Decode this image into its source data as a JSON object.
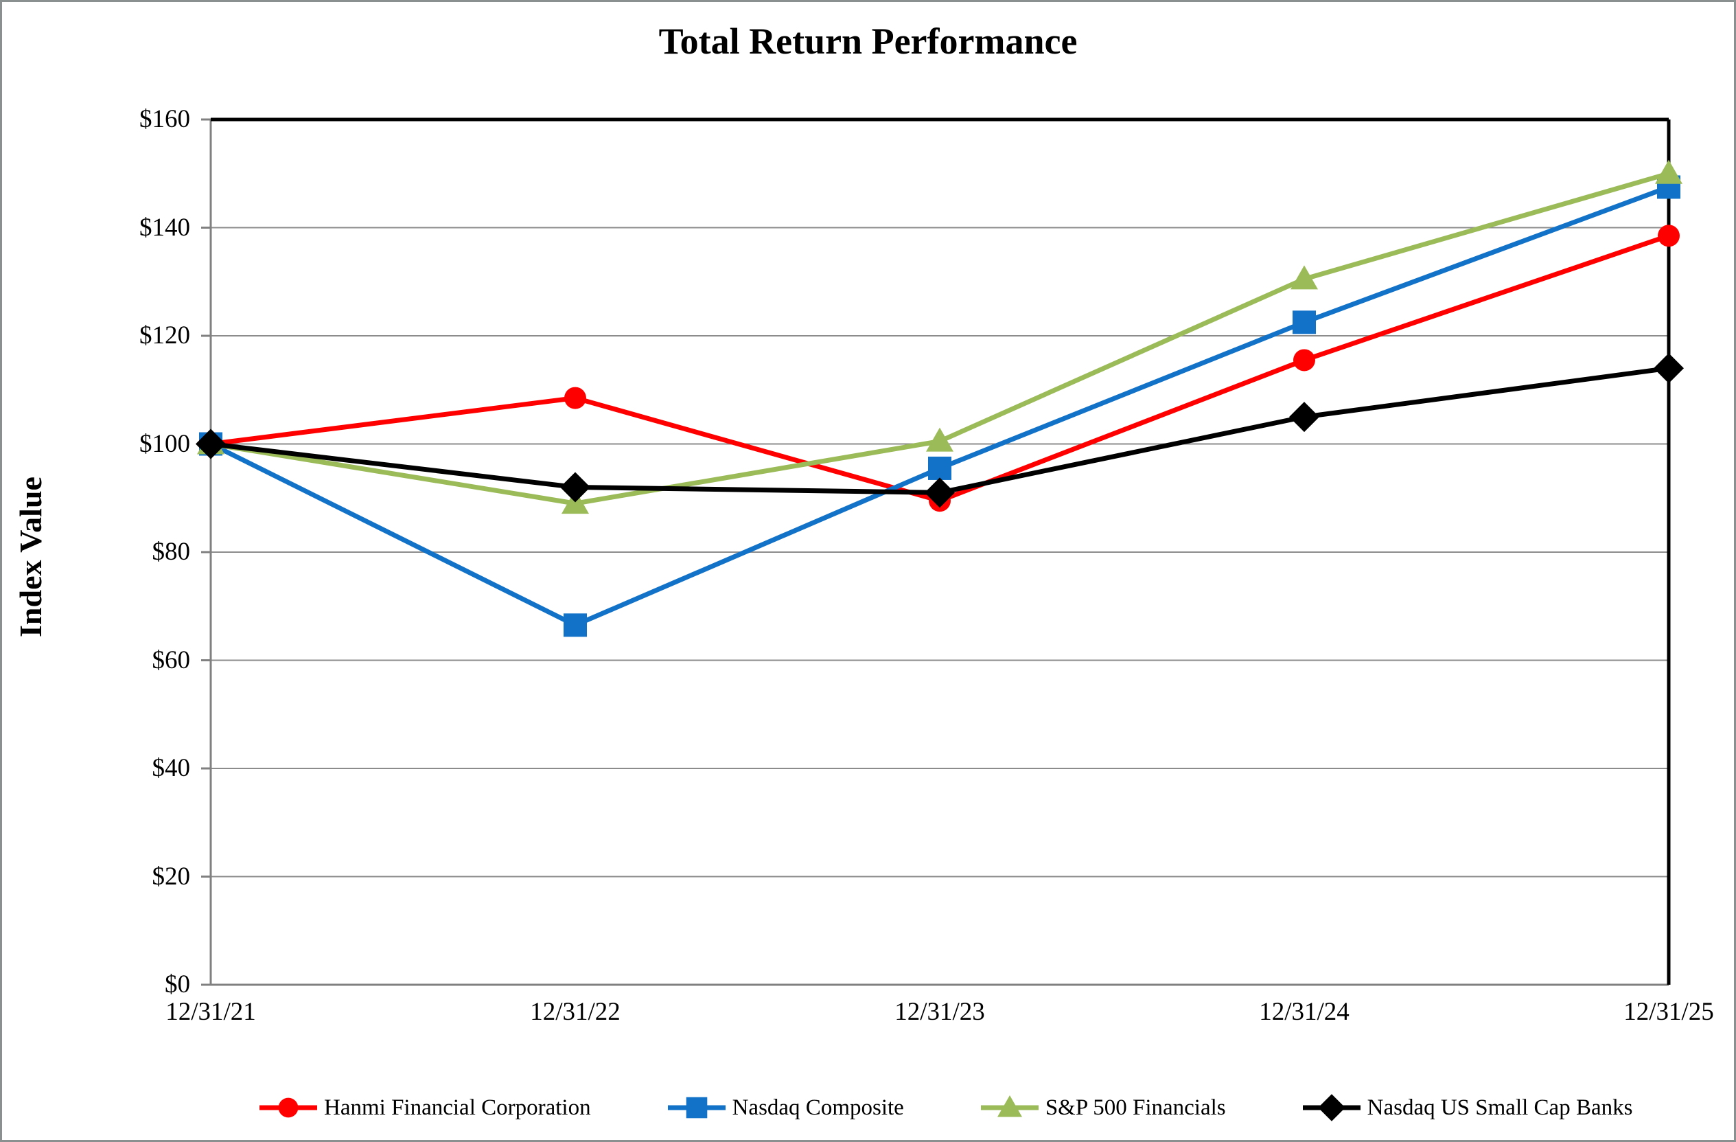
{
  "chart_data": {
    "type": "line",
    "title": "Total Return Performance",
    "xlabel": "",
    "ylabel": "Index Value",
    "categories": [
      "12/31/21",
      "12/31/22",
      "12/31/23",
      "12/31/24",
      "12/31/25"
    ],
    "y_axis": {
      "min": 0,
      "max": 160,
      "tick_step": 20,
      "tick_labels": [
        "$0",
        "$20",
        "$40",
        "$60",
        "$80",
        "$100",
        "$120",
        "$140",
        "$160"
      ]
    },
    "grid": "horizontal",
    "legend_position": "bottom",
    "series": [
      {
        "name": "Hanmi Financial Corporation",
        "color": "#FF0000",
        "marker": "circle",
        "values": [
          100,
          108.5,
          89.5,
          115.5,
          138.5
        ]
      },
      {
        "name": "Nasdaq Composite",
        "color": "#1272C8",
        "marker": "square",
        "values": [
          100,
          66.5,
          95.5,
          122.5,
          147.5
        ]
      },
      {
        "name": "S&P 500 Financials",
        "color": "#9BBB59",
        "marker": "triangle",
        "values": [
          100,
          89,
          100.5,
          130.5,
          150
        ]
      },
      {
        "name": "Nasdaq US Small Cap Banks",
        "color": "#000000",
        "marker": "diamond",
        "values": [
          100,
          92,
          91,
          105,
          114
        ]
      }
    ]
  },
  "colors": {
    "background": "#FFFFFF",
    "gridline": "#8C8C8C",
    "axis_line": "#808080",
    "plot_border_top_right": "#000000",
    "outer_border": "#8A9090"
  }
}
